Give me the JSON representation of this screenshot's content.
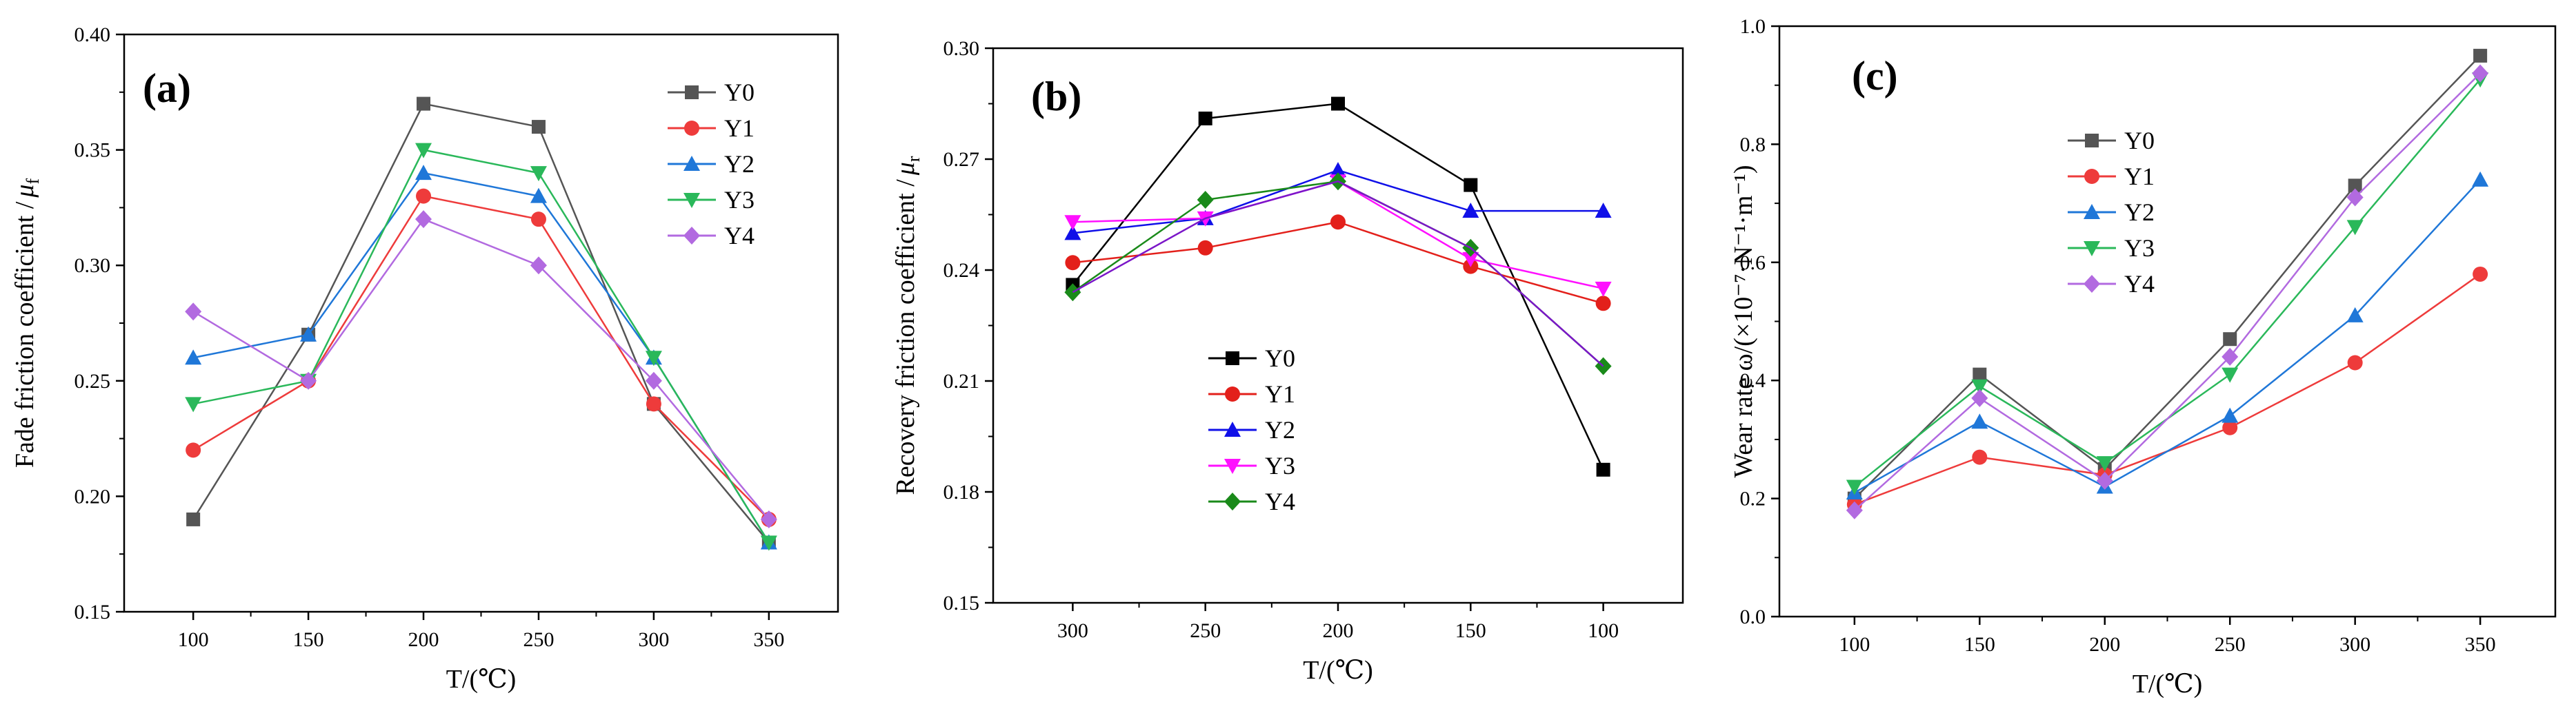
{
  "chart_data": [
    {
      "type": "line",
      "panel_label": "(a)",
      "x": [
        100,
        150,
        200,
        250,
        300,
        350
      ],
      "x_ticks": [
        "100",
        "150",
        "200",
        "250",
        "300",
        "350"
      ],
      "xlim": [
        70,
        380
      ],
      "ylim": [
        0.15,
        0.4
      ],
      "y_ticks": [
        "0.15",
        "0.20",
        "0.25",
        "0.30",
        "0.35",
        "0.40"
      ],
      "xlabel": "T/(℃)",
      "ylabel": "Fade friction coefficient /",
      "ylabel_symbol": "μ",
      "ylabel_subscript": "f",
      "legend_position": "top-right",
      "series": [
        {
          "name": "Y0",
          "color": "#555555",
          "marker": "square",
          "values": [
            0.19,
            0.27,
            0.37,
            0.36,
            0.24,
            0.18
          ]
        },
        {
          "name": "Y1",
          "color": "#ee3b3b",
          "marker": "circle",
          "values": [
            0.22,
            0.25,
            0.33,
            0.32,
            0.24,
            0.19
          ]
        },
        {
          "name": "Y2",
          "color": "#1f77d8",
          "marker": "triangle-up",
          "values": [
            0.26,
            0.27,
            0.34,
            0.33,
            0.26,
            0.18
          ]
        },
        {
          "name": "Y3",
          "color": "#2ab85a",
          "marker": "triangle-down",
          "values": [
            0.24,
            0.25,
            0.35,
            0.34,
            0.26,
            0.18
          ]
        },
        {
          "name": "Y4",
          "color": "#b26ae0",
          "marker": "diamond",
          "values": [
            0.28,
            0.25,
            0.32,
            0.3,
            0.25,
            0.19
          ]
        }
      ]
    },
    {
      "type": "line",
      "panel_label": "(b)",
      "x": [
        300,
        250,
        200,
        150,
        100
      ],
      "x_ticks": [
        "300",
        "250",
        "200",
        "150",
        "100"
      ],
      "xlim": [
        330,
        70
      ],
      "ylim": [
        0.15,
        0.3
      ],
      "y_ticks": [
        "0.15",
        "0.18",
        "0.21",
        "0.24",
        "0.27",
        "0.30"
      ],
      "xlabel": "T/(℃)",
      "ylabel": "Recovery friction coefficient /",
      "ylabel_symbol": "μ",
      "ylabel_subscript": "r",
      "legend_position": "center",
      "series": [
        {
          "name": "Y0",
          "color": "#000000",
          "marker": "square",
          "values": [
            0.236,
            0.281,
            0.285,
            0.263,
            0.186
          ]
        },
        {
          "name": "Y1",
          "color": "#e3201b",
          "marker": "circle",
          "values": [
            0.242,
            0.246,
            0.253,
            0.241,
            0.231
          ]
        },
        {
          "name": "Y2",
          "color": "#1010e8",
          "marker": "triangle-up",
          "values": [
            0.25,
            0.254,
            0.267,
            0.256,
            0.256
          ]
        },
        {
          "name": "Y3",
          "color": "#ff10ff",
          "marker": "triangle-down",
          "values": [
            0.253,
            0.254,
            0.264,
            0.243,
            0.235
          ]
        },
        {
          "name": "Y4",
          "color": "#1a8a1a",
          "marker": "diamond",
          "values": [
            0.234,
            0.259,
            0.264,
            0.246,
            0.214
          ]
        },
        {
          "name": "Y4 line",
          "color": "#7b16c8",
          "marker": "none",
          "legend": false,
          "values": [
            0.234,
            0.254,
            0.264,
            0.246,
            0.214
          ]
        }
      ]
    },
    {
      "type": "line",
      "panel_label": "(c)",
      "x": [
        100,
        150,
        200,
        250,
        300,
        350
      ],
      "x_ticks": [
        "100",
        "150",
        "200",
        "250",
        "300",
        "350"
      ],
      "xlim": [
        70,
        380
      ],
      "ylim": [
        0.0,
        1.0
      ],
      "y_ticks": [
        "0.0",
        "0.2",
        "0.4",
        "0.6",
        "0.8",
        "1.0"
      ],
      "xlabel": "T/(℃)",
      "ylabel": "Wear rate ω/(×10⁻⁷·N⁻¹·m⁻¹)",
      "legend_position": "top-left",
      "series": [
        {
          "name": "Y0",
          "color": "#555555",
          "marker": "square",
          "values": [
            0.2,
            0.41,
            0.25,
            0.47,
            0.73,
            0.95
          ]
        },
        {
          "name": "Y1",
          "color": "#ee3b3b",
          "marker": "circle",
          "values": [
            0.19,
            0.27,
            0.24,
            0.32,
            0.43,
            0.58
          ]
        },
        {
          "name": "Y2",
          "color": "#1f77d8",
          "marker": "triangle-up",
          "values": [
            0.21,
            0.33,
            0.22,
            0.34,
            0.51,
            0.74
          ]
        },
        {
          "name": "Y3",
          "color": "#2ab85a",
          "marker": "triangle-down",
          "values": [
            0.22,
            0.39,
            0.26,
            0.41,
            0.66,
            0.91
          ]
        },
        {
          "name": "Y4",
          "color": "#b26ae0",
          "marker": "diamond",
          "values": [
            0.18,
            0.37,
            0.23,
            0.44,
            0.71,
            0.92
          ]
        }
      ]
    }
  ]
}
